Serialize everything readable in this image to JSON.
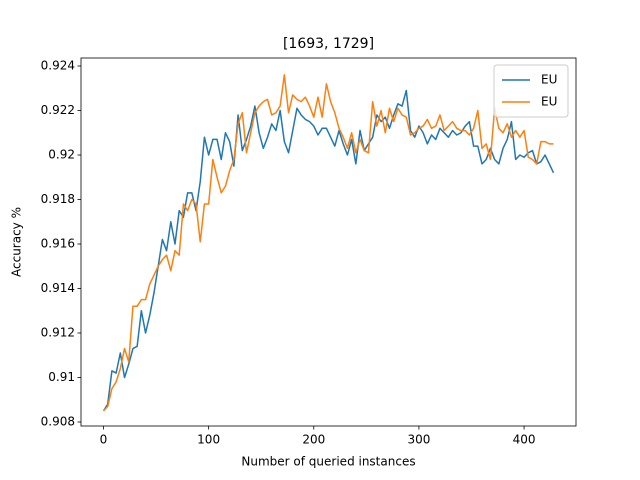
{
  "chart_data": {
    "type": "line",
    "title": "[1693, 1729]",
    "x_label": "Number of queried instances",
    "y_label": "Accuracy %",
    "x": [
      0,
      4,
      8,
      12,
      16,
      20,
      24,
      28,
      32,
      36,
      40,
      44,
      48,
      52,
      56,
      60,
      64,
      68,
      72,
      76,
      80,
      84,
      88,
      92,
      96,
      100,
      104,
      108,
      112,
      116,
      120,
      124,
      128,
      132,
      136,
      140,
      144,
      148,
      152,
      156,
      160,
      164,
      168,
      172,
      176,
      180,
      184,
      188,
      192,
      196,
      200,
      204,
      208,
      212,
      216,
      220,
      224,
      228,
      232,
      236,
      240,
      244,
      248,
      252,
      256,
      260,
      264,
      268,
      272,
      276,
      280,
      284,
      288,
      292,
      296,
      300,
      304,
      308,
      312,
      316,
      320,
      324,
      328,
      332,
      336,
      340,
      344,
      348,
      352,
      356,
      360,
      364,
      368,
      372,
      376,
      380,
      384,
      388,
      392,
      396,
      400,
      404,
      408,
      412,
      416,
      420,
      424,
      428
    ],
    "series": [
      {
        "name": "EU",
        "color": "#1f77b4",
        "values": [
          0.9085,
          0.9088,
          0.9103,
          0.9102,
          0.9111,
          0.91,
          0.9106,
          0.9113,
          0.9114,
          0.913,
          0.912,
          0.9128,
          0.9138,
          0.915,
          0.9162,
          0.9157,
          0.917,
          0.916,
          0.9175,
          0.9172,
          0.9183,
          0.9183,
          0.9175,
          0.9188,
          0.9208,
          0.92,
          0.9207,
          0.9207,
          0.9198,
          0.921,
          0.9206,
          0.9195,
          0.9218,
          0.9202,
          0.9207,
          0.9213,
          0.9222,
          0.921,
          0.9203,
          0.9208,
          0.9214,
          0.9211,
          0.922,
          0.9206,
          0.9201,
          0.9211,
          0.9221,
          0.9218,
          0.9216,
          0.9215,
          0.9213,
          0.9209,
          0.9212,
          0.9212,
          0.9208,
          0.9204,
          0.9211,
          0.9205,
          0.92,
          0.9207,
          0.9196,
          0.9211,
          0.9202,
          0.9205,
          0.9208,
          0.9218,
          0.9215,
          0.9217,
          0.9212,
          0.9218,
          0.9223,
          0.9222,
          0.9229,
          0.9211,
          0.9208,
          0.9213,
          0.921,
          0.9205,
          0.9209,
          0.9207,
          0.9212,
          0.921,
          0.9208,
          0.9211,
          0.9209,
          0.921,
          0.9213,
          0.9215,
          0.9204,
          0.9204,
          0.9196,
          0.9198,
          0.9203,
          0.9198,
          0.9196,
          0.9203,
          0.9207,
          0.9215,
          0.9198,
          0.92,
          0.9199,
          0.9201,
          0.9202,
          0.9196,
          0.9197,
          0.92,
          0.9196,
          0.9192
        ]
      },
      {
        "name": "EU",
        "color": "#ff7f0e",
        "values": [
          0.9085,
          0.9087,
          0.9095,
          0.9098,
          0.9104,
          0.9113,
          0.9107,
          0.9132,
          0.9132,
          0.9135,
          0.9135,
          0.9142,
          0.9146,
          0.915,
          0.9153,
          0.9155,
          0.9148,
          0.9157,
          0.9155,
          0.9178,
          0.9175,
          0.918,
          0.9178,
          0.9161,
          0.9178,
          0.9178,
          0.9198,
          0.919,
          0.9183,
          0.9186,
          0.9193,
          0.9198,
          0.9214,
          0.9219,
          0.9201,
          0.921,
          0.9219,
          0.9222,
          0.9224,
          0.9225,
          0.9218,
          0.9219,
          0.9222,
          0.9236,
          0.9219,
          0.9227,
          0.9225,
          0.9224,
          0.9226,
          0.9222,
          0.9217,
          0.9226,
          0.9217,
          0.9232,
          0.9224,
          0.9219,
          0.9212,
          0.9208,
          0.9203,
          0.921,
          0.9201,
          0.9207,
          0.9202,
          0.9201,
          0.9224,
          0.9213,
          0.922,
          0.921,
          0.9221,
          0.9215,
          0.9221,
          0.9218,
          0.9217,
          0.9209,
          0.921,
          0.9212,
          0.9213,
          0.9216,
          0.9212,
          0.9213,
          0.9218,
          0.9211,
          0.9213,
          0.9215,
          0.9212,
          0.9211,
          0.9211,
          0.9209,
          0.9212,
          0.922,
          0.9203,
          0.9205,
          0.9198,
          0.9221,
          0.9212,
          0.921,
          0.9214,
          0.9208,
          0.9211,
          0.9208,
          0.9211,
          0.9199,
          0.9198,
          0.9196,
          0.9206,
          0.9206,
          0.9205,
          0.9205
        ]
      }
    ],
    "xlim": [
      -21.4,
      449.4
    ],
    "ylim": [
      0.90782,
      0.92436
    ],
    "xticks": [
      0,
      100,
      200,
      300,
      400
    ],
    "yticks": [
      0.908,
      0.91,
      0.912,
      0.914,
      0.916,
      0.918,
      0.92,
      0.922,
      0.924
    ],
    "legend": "upper right",
    "grid": false
  }
}
